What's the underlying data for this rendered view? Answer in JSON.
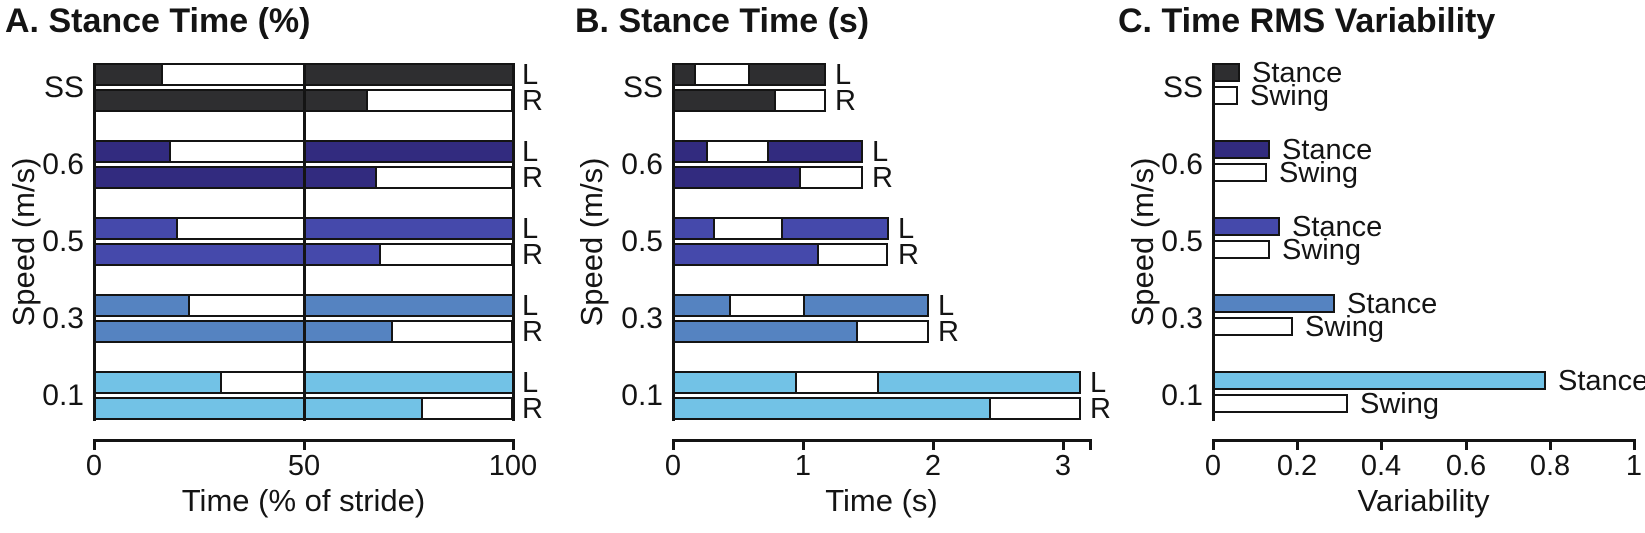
{
  "figure": {
    "background": "#ffffff",
    "ink_color": "#141414",
    "speed_categories": [
      "SS",
      "0.6",
      "0.5",
      "0.3",
      "0.1"
    ],
    "speed_colors": [
      "#2E2E30",
      "#322B7F",
      "#4549AB",
      "#5583C1",
      "#72C2E6"
    ],
    "swing_fill": "#FFFFFF",
    "side_labels": [
      "L",
      "R"
    ]
  },
  "chart_data": [
    {
      "id": "A",
      "type": "bar",
      "title": "A. Stance Time (%)",
      "xlabel": "Time (% of stride)",
      "ylabel": "Speed (m/s)",
      "xlim": [
        0,
        100
      ],
      "xticks": [
        "0",
        "50",
        "100"
      ],
      "xtick_values": [
        0,
        50,
        100
      ],
      "gridlines": [
        0,
        50,
        100
      ],
      "legend": [
        "stance",
        "swing"
      ],
      "categories": [
        "SS",
        "0.6",
        "0.5",
        "0.3",
        "0.1"
      ],
      "rows": [
        {
          "speed": "SS",
          "side": "L",
          "segments": [
            [
              0,
              16,
              "stance"
            ],
            [
              16,
              50,
              "swing"
            ],
            [
              50,
              100,
              "stance"
            ]
          ]
        },
        {
          "speed": "SS",
          "side": "R",
          "segments": [
            [
              0,
              65,
              "stance"
            ],
            [
              65,
              100,
              "swing"
            ]
          ]
        },
        {
          "speed": "0.6",
          "side": "L",
          "segments": [
            [
              0,
              18,
              "stance"
            ],
            [
              18,
              50,
              "swing"
            ],
            [
              50,
              100,
              "stance"
            ]
          ]
        },
        {
          "speed": "0.6",
          "side": "R",
          "segments": [
            [
              0,
              67,
              "stance"
            ],
            [
              67,
              100,
              "swing"
            ]
          ]
        },
        {
          "speed": "0.5",
          "side": "L",
          "segments": [
            [
              0,
              19.5,
              "stance"
            ],
            [
              19.5,
              50,
              "swing"
            ],
            [
              50,
              100,
              "stance"
            ]
          ]
        },
        {
          "speed": "0.5",
          "side": "R",
          "segments": [
            [
              0,
              68,
              "stance"
            ],
            [
              68,
              100,
              "swing"
            ]
          ]
        },
        {
          "speed": "0.3",
          "side": "L",
          "segments": [
            [
              0,
              22.5,
              "stance"
            ],
            [
              22.5,
              50,
              "swing"
            ],
            [
              50,
              100,
              "stance"
            ]
          ]
        },
        {
          "speed": "0.3",
          "side": "R",
          "segments": [
            [
              0,
              71,
              "stance"
            ],
            [
              71,
              100,
              "swing"
            ]
          ]
        },
        {
          "speed": "0.1",
          "side": "L",
          "segments": [
            [
              0,
              30,
              "stance"
            ],
            [
              30,
              50,
              "swing"
            ],
            [
              50,
              100,
              "stance"
            ]
          ]
        },
        {
          "speed": "0.1",
          "side": "R",
          "segments": [
            [
              0,
              78,
              "stance"
            ],
            [
              78,
              100,
              "swing"
            ]
          ]
        }
      ]
    },
    {
      "id": "B",
      "type": "bar",
      "title": "B. Stance Time (s)",
      "xlabel": "Time (s)",
      "ylabel": "Speed (m/s)",
      "xlim": [
        0,
        3.2
      ],
      "xticks": [
        "0",
        "1",
        "2",
        "3"
      ],
      "xtick_values": [
        0,
        1,
        2,
        3
      ],
      "gridlines": [
        0
      ],
      "legend": [
        "stance",
        "swing"
      ],
      "categories": [
        "SS",
        "0.6",
        "0.5",
        "0.3",
        "0.1"
      ],
      "rows": [
        {
          "speed": "SS",
          "side": "L",
          "segments": [
            [
              0,
              0.16,
              "stance"
            ],
            [
              0.16,
              0.58,
              "swing"
            ],
            [
              0.58,
              1.18,
              "stance"
            ]
          ]
        },
        {
          "speed": "SS",
          "side": "R",
          "segments": [
            [
              0,
              0.78,
              "stance"
            ],
            [
              0.78,
              1.18,
              "swing"
            ]
          ]
        },
        {
          "speed": "0.6",
          "side": "L",
          "segments": [
            [
              0,
              0.25,
              "stance"
            ],
            [
              0.25,
              0.72,
              "swing"
            ],
            [
              0.72,
              1.46,
              "stance"
            ]
          ]
        },
        {
          "speed": "0.6",
          "side": "R",
          "segments": [
            [
              0,
              0.97,
              "stance"
            ],
            [
              0.97,
              1.46,
              "swing"
            ]
          ]
        },
        {
          "speed": "0.5",
          "side": "L",
          "segments": [
            [
              0,
              0.31,
              "stance"
            ],
            [
              0.31,
              0.83,
              "swing"
            ],
            [
              0.83,
              1.66,
              "stance"
            ]
          ]
        },
        {
          "speed": "0.5",
          "side": "R",
          "segments": [
            [
              0,
              1.11,
              "stance"
            ],
            [
              1.11,
              1.66,
              "swing"
            ]
          ]
        },
        {
          "speed": "0.3",
          "side": "L",
          "segments": [
            [
              0,
              0.43,
              "stance"
            ],
            [
              0.43,
              1.0,
              "swing"
            ],
            [
              1.0,
              1.97,
              "stance"
            ]
          ]
        },
        {
          "speed": "0.3",
          "side": "R",
          "segments": [
            [
              0,
              1.41,
              "stance"
            ],
            [
              1.41,
              1.97,
              "swing"
            ]
          ]
        },
        {
          "speed": "0.1",
          "side": "L",
          "segments": [
            [
              0,
              0.94,
              "stance"
            ],
            [
              0.94,
              1.57,
              "swing"
            ],
            [
              1.57,
              3.14,
              "stance"
            ]
          ]
        },
        {
          "speed": "0.1",
          "side": "R",
          "segments": [
            [
              0,
              2.43,
              "stance"
            ],
            [
              2.43,
              3.14,
              "swing"
            ]
          ]
        }
      ]
    },
    {
      "id": "C",
      "type": "bar",
      "title": "C. Time RMS Variability",
      "xlabel": "Variability",
      "ylabel": "Speed (m/s)",
      "xlim": [
        0,
        1
      ],
      "xticks": [
        "0",
        "0.2",
        "0.4",
        "0.6",
        "0.8",
        "1"
      ],
      "xtick_values": [
        0,
        0.2,
        0.4,
        0.6,
        0.8,
        1
      ],
      "gridlines": [
        0
      ],
      "stance_label": "Stance",
      "swing_label": "Swing",
      "categories": [
        "SS",
        "0.6",
        "0.5",
        "0.3",
        "0.1"
      ],
      "rows": [
        {
          "speed": "SS",
          "stance": 0.065,
          "swing": 0.06
        },
        {
          "speed": "0.6",
          "stance": 0.135,
          "swing": 0.128
        },
        {
          "speed": "0.5",
          "stance": 0.16,
          "swing": 0.135
        },
        {
          "speed": "0.3",
          "stance": 0.29,
          "swing": 0.19
        },
        {
          "speed": "0.1",
          "stance": 0.79,
          "swing": 0.32
        }
      ]
    }
  ]
}
